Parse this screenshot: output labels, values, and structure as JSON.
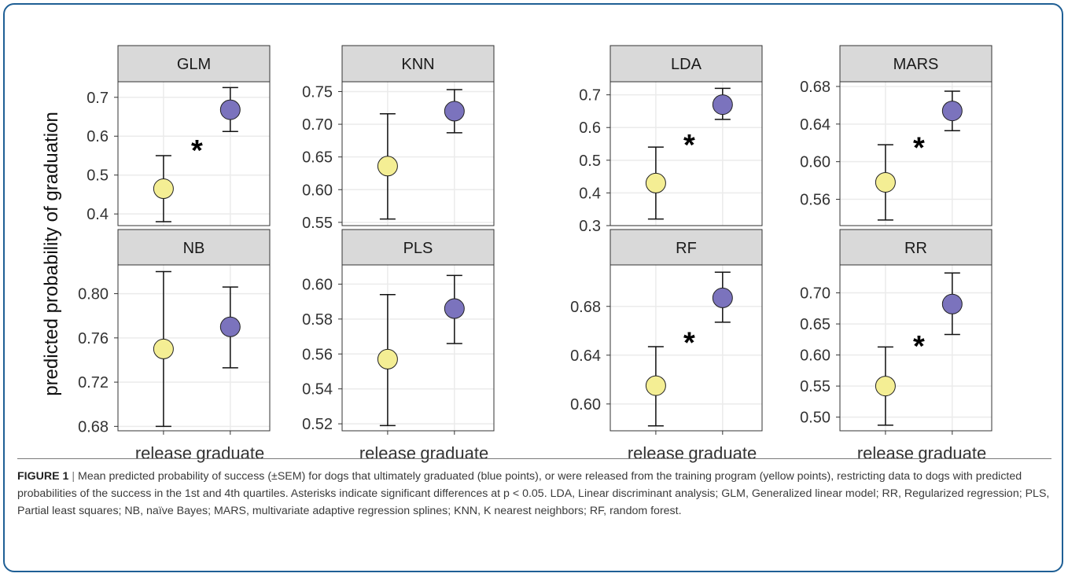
{
  "figure": {
    "ylabel": "predicted probability of graduation",
    "caption_label": "FIGURE 1",
    "caption_separator": "|",
    "caption_text": " Mean predicted probability of success (±SEM) for dogs that ultimately graduated (blue points), or were released from the training program (yellow points), restricting data to dogs with predicted probabilities of the success in the 1st and 4th quartiles. Asterisks indicate significant differences at p < 0.05. LDA, Linear discriminant analysis; GLM, Generalized linear model; RR, Regularized regression; PLS, Partial least squares; NB, naïve Bayes; MARS, multivariate adaptive regression splines; KNN, K nearest neighbors; RF, random forest."
  },
  "colors": {
    "release": "#f4ee94",
    "graduate": "#7b73bd",
    "strip_bg": "#d9d9d9",
    "grid": "#ebebeb",
    "frame": "#1f5f95"
  },
  "chart_data": [
    {
      "type": "scatter",
      "title": "GLM",
      "categories": [
        "release",
        "graduate"
      ],
      "means": [
        0.465,
        0.668
      ],
      "lower": [
        0.38,
        0.612
      ],
      "upper": [
        0.55,
        0.725
      ],
      "ylim": [
        0.37,
        0.74
      ],
      "yticks": [
        "0.4",
        "0.5",
        "0.6",
        "0.7"
      ],
      "significance": "*",
      "grid": true
    },
    {
      "type": "scatter",
      "title": "KNN",
      "categories": [
        "release",
        "graduate"
      ],
      "means": [
        0.636,
        0.72
      ],
      "lower": [
        0.555,
        0.687
      ],
      "upper": [
        0.716,
        0.753
      ],
      "ylim": [
        0.545,
        0.765
      ],
      "yticks": [
        "0.55",
        "0.60",
        "0.65",
        "0.70",
        "0.75"
      ],
      "significance": "",
      "grid": true
    },
    {
      "type": "scatter",
      "title": "LDA",
      "categories": [
        "release",
        "graduate"
      ],
      "means": [
        0.43,
        0.67
      ],
      "lower": [
        0.32,
        0.625
      ],
      "upper": [
        0.54,
        0.72
      ],
      "ylim": [
        0.3,
        0.74
      ],
      "yticks": [
        "0.3",
        "0.4",
        "0.5",
        "0.6",
        "0.7"
      ],
      "significance": "*",
      "grid": true
    },
    {
      "type": "scatter",
      "title": "MARS",
      "categories": [
        "release",
        "graduate"
      ],
      "means": [
        0.578,
        0.654
      ],
      "lower": [
        0.538,
        0.633
      ],
      "upper": [
        0.618,
        0.675
      ],
      "ylim": [
        0.532,
        0.685
      ],
      "yticks": [
        "0.56",
        "0.60",
        "0.64",
        "0.68"
      ],
      "significance": "*",
      "grid": true
    },
    {
      "type": "scatter",
      "title": "NB",
      "categories": [
        "release",
        "graduate"
      ],
      "means": [
        0.75,
        0.77
      ],
      "lower": [
        0.68,
        0.733
      ],
      "upper": [
        0.82,
        0.806
      ],
      "ylim": [
        0.676,
        0.826
      ],
      "yticks": [
        "0.68",
        "0.72",
        "0.76",
        "0.80"
      ],
      "significance": "",
      "grid": true
    },
    {
      "type": "scatter",
      "title": "PLS",
      "categories": [
        "release",
        "graduate"
      ],
      "means": [
        0.557,
        0.586
      ],
      "lower": [
        0.519,
        0.566
      ],
      "upper": [
        0.594,
        0.605
      ],
      "ylim": [
        0.516,
        0.611
      ],
      "yticks": [
        "0.52",
        "0.54",
        "0.56",
        "0.58",
        "0.60"
      ],
      "significance": "",
      "grid": true
    },
    {
      "type": "scatter",
      "title": "RF",
      "categories": [
        "release",
        "graduate"
      ],
      "means": [
        0.615,
        0.687
      ],
      "lower": [
        0.582,
        0.667
      ],
      "upper": [
        0.647,
        0.708
      ],
      "ylim": [
        0.578,
        0.714
      ],
      "yticks": [
        "0.60",
        "0.64",
        "0.68"
      ],
      "significance": "*",
      "grid": true
    },
    {
      "type": "scatter",
      "title": "RR",
      "categories": [
        "release",
        "graduate"
      ],
      "means": [
        0.55,
        0.682
      ],
      "lower": [
        0.487,
        0.633
      ],
      "upper": [
        0.613,
        0.732
      ],
      "ylim": [
        0.478,
        0.745
      ],
      "yticks": [
        "0.50",
        "0.55",
        "0.60",
        "0.65",
        "0.70"
      ],
      "significance": "*",
      "grid": true
    }
  ]
}
